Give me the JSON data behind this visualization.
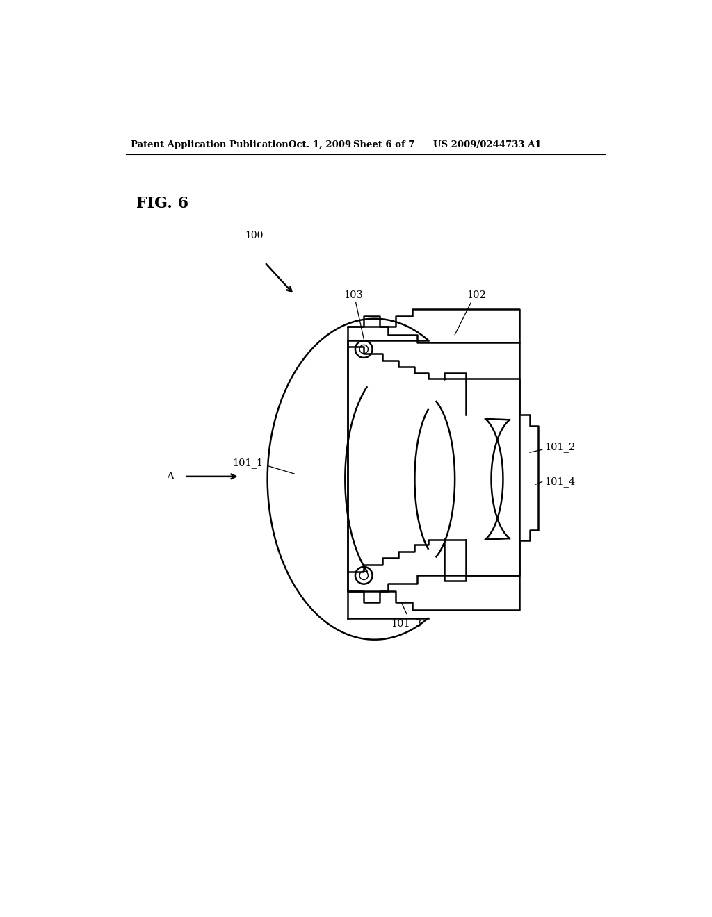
{
  "bg_color": "#ffffff",
  "line_color": "#000000",
  "header_text": "Patent Application Publication",
  "header_date": "Oct. 1, 2009",
  "header_sheet": "Sheet 6 of 7",
  "header_patent": "US 2009/0244733 A1",
  "fig_label": "FIG. 6"
}
